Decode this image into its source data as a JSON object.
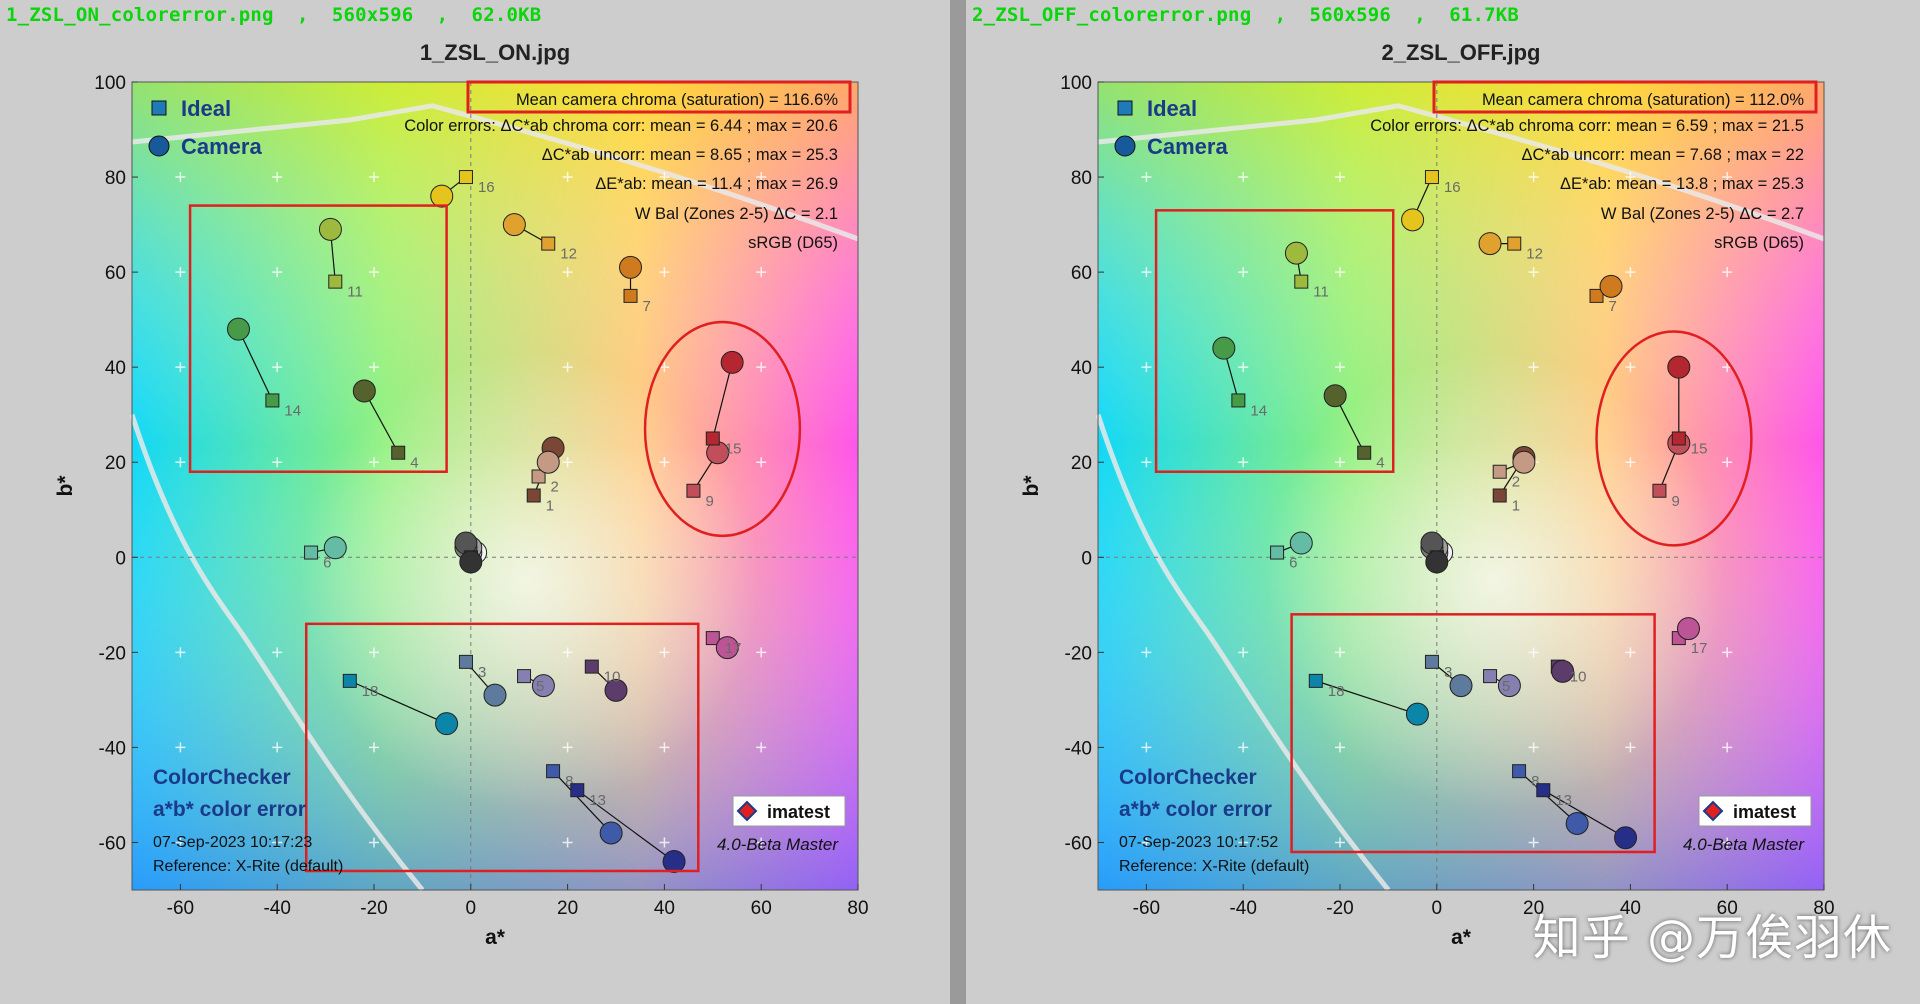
{
  "colors": {
    "highlight": "#e02020",
    "file_label": "#0bd50b",
    "text": "#111111"
  },
  "legend": {
    "ideal": "Ideal",
    "camera": "Camera"
  },
  "footer": {
    "title1": "ColorChecker",
    "title2": "a*b* color error",
    "reference": "Reference: X-Rite (default)",
    "version": "4.0-Beta  Master",
    "logo": "imatest"
  },
  "axes": {
    "xlabel": "a*",
    "ylabel": "b*",
    "xlim": [
      -70,
      80
    ],
    "ylim": [
      -70,
      100
    ],
    "xticks": [
      -60,
      -40,
      -20,
      0,
      20,
      40,
      60,
      80
    ],
    "yticks": [
      -60,
      -40,
      -20,
      0,
      20,
      40,
      60,
      80,
      100
    ]
  },
  "watermark": "知乎 @万俟羽休",
  "panels": [
    {
      "file_label": "1_ZSL_ON_colorerror.png  ,  560x596  ,  62.0KB",
      "title": "1_ZSL_ON.jpg",
      "stats": {
        "mean_chroma": "Mean camera chroma (saturation) = 116.6%",
        "line2": "Color errors: ΔC*ab chroma corr:  mean = 6.44 ;  max = 20.6",
        "line3": "ΔC*ab uncorr:  mean = 8.65 ;  max = 25.3",
        "line4": "ΔE*ab:  mean = 11.4 ;  max = 26.9",
        "line5": "W Bal (Zones 2-5) ΔC = 2.1",
        "line6": "sRGB (D65)"
      },
      "date": "07-Sep-2023 10:17:23"
    },
    {
      "file_label": "2_ZSL_OFF_colorerror.png  ,  560x596  ,  61.7KB",
      "title": "2_ZSL_OFF.jpg",
      "stats": {
        "mean_chroma": "Mean camera chroma (saturation) = 112.0%",
        "line2": "Color errors: ΔC*ab chroma corr:  mean = 6.59 ;  max = 21.5",
        "line3": "ΔC*ab uncorr:  mean = 7.68 ;  max = 22",
        "line4": "ΔE*ab:  mean = 13.8 ;  max = 25.3",
        "line5": "W Bal (Zones 2-5) ΔC = 2.7",
        "line6": "sRGB (D65)"
      },
      "date": "07-Sep-2023 10:17:52"
    }
  ],
  "chart_data": [
    {
      "type": "scatter",
      "title": "1_ZSL_ON.jpg",
      "xlabel": "a*",
      "ylabel": "b*",
      "xlim": [
        -70,
        80
      ],
      "ylim": [
        -70,
        100
      ],
      "points": [
        {
          "id": "1",
          "ideal": [
            13,
            13
          ],
          "camera": [
            17,
            23
          ],
          "color": "#7a4636"
        },
        {
          "id": "2",
          "ideal": [
            14,
            17
          ],
          "camera": [
            16,
            20
          ],
          "color": "#c49a84"
        },
        {
          "id": "3",
          "ideal": [
            -1,
            -22
          ],
          "camera": [
            5,
            -29
          ],
          "color": "#5e7a9c"
        },
        {
          "id": "4",
          "ideal": [
            -15,
            22
          ],
          "camera": [
            -22,
            35
          ],
          "color": "#55622e"
        },
        {
          "id": "5",
          "ideal": [
            11,
            -25
          ],
          "camera": [
            15,
            -27
          ],
          "color": "#8580b0"
        },
        {
          "id": "6",
          "ideal": [
            -33,
            1
          ],
          "camera": [
            -28,
            2
          ],
          "color": "#64bca4"
        },
        {
          "id": "7",
          "ideal": [
            33,
            55
          ],
          "camera": [
            33,
            61
          ],
          "color": "#d07a20"
        },
        {
          "id": "8",
          "ideal": [
            17,
            -45
          ],
          "camera": [
            29,
            -58
          ],
          "color": "#3e5aa8"
        },
        {
          "id": "9",
          "ideal": [
            46,
            14
          ],
          "camera": [
            51,
            22
          ],
          "color": "#c24e5a"
        },
        {
          "id": "10",
          "ideal": [
            25,
            -23
          ],
          "camera": [
            30,
            -28
          ],
          "color": "#5c3c6a"
        },
        {
          "id": "11",
          "ideal": [
            -28,
            58
          ],
          "camera": [
            -29,
            69
          ],
          "color": "#9dba3e"
        },
        {
          "id": "12",
          "ideal": [
            16,
            66
          ],
          "camera": [
            9,
            70
          ],
          "color": "#e0a12e"
        },
        {
          "id": "13",
          "ideal": [
            22,
            -49
          ],
          "camera": [
            42,
            -64
          ],
          "color": "#262e88"
        },
        {
          "id": "14",
          "ideal": [
            -41,
            33
          ],
          "camera": [
            -48,
            48
          ],
          "color": "#469a48"
        },
        {
          "id": "15",
          "ideal": [
            50,
            25
          ],
          "camera": [
            54,
            41
          ],
          "color": "#b42630"
        },
        {
          "id": "16",
          "ideal": [
            -1,
            80
          ],
          "camera": [
            -6,
            76
          ],
          "color": "#e6c41e"
        },
        {
          "id": "17",
          "ideal": [
            50,
            -17
          ],
          "camera": [
            53,
            -19
          ],
          "color": "#bc5496"
        },
        {
          "id": "18",
          "ideal": [
            -25,
            -26
          ],
          "camera": [
            -5,
            -35
          ],
          "color": "#0c86a8"
        },
        {
          "id": "19",
          "ideal": [
            0,
            0
          ],
          "camera": [
            1,
            1
          ],
          "color": "#f4f4f4"
        },
        {
          "id": "20",
          "ideal": [
            0,
            0
          ],
          "camera": [
            0,
            1
          ],
          "color": "#c8c8c8"
        },
        {
          "id": "21",
          "ideal": [
            0,
            0
          ],
          "camera": [
            0,
            2
          ],
          "color": "#a0a0a0"
        },
        {
          "id": "22",
          "ideal": [
            0,
            0
          ],
          "camera": [
            -1,
            2
          ],
          "color": "#7a7a7a"
        },
        {
          "id": "23",
          "ideal": [
            0,
            0
          ],
          "camera": [
            -1,
            3
          ],
          "color": "#555555"
        },
        {
          "id": "24",
          "ideal": [
            0,
            0
          ],
          "camera": [
            0,
            -1
          ],
          "color": "#333333"
        }
      ],
      "highlight_boxes": [
        {
          "a": [
            -58,
            -5
          ],
          "b": [
            18,
            74
          ]
        },
        {
          "a": [
            -34,
            47
          ],
          "b": [
            -66,
            -14
          ]
        }
      ],
      "highlight_ellipses": [
        {
          "cx": 52,
          "cy": 27,
          "ra": 16,
          "rb": 22.5
        }
      ]
    },
    {
      "type": "scatter",
      "title": "2_ZSL_OFF.jpg",
      "xlabel": "a*",
      "ylabel": "b*",
      "xlim": [
        -70,
        80
      ],
      "ylim": [
        -70,
        100
      ],
      "points": [
        {
          "id": "1",
          "ideal": [
            13,
            13
          ],
          "camera": [
            18,
            21
          ],
          "color": "#7a4636"
        },
        {
          "id": "2",
          "ideal": [
            13,
            18
          ],
          "camera": [
            18,
            20
          ],
          "color": "#c49a84"
        },
        {
          "id": "3",
          "ideal": [
            -1,
            -22
          ],
          "camera": [
            5,
            -27
          ],
          "color": "#5e7a9c"
        },
        {
          "id": "4",
          "ideal": [
            -15,
            22
          ],
          "camera": [
            -21,
            34
          ],
          "color": "#55622e"
        },
        {
          "id": "5",
          "ideal": [
            11,
            -25
          ],
          "camera": [
            15,
            -27
          ],
          "color": "#8580b0"
        },
        {
          "id": "6",
          "ideal": [
            -33,
            1
          ],
          "camera": [
            -28,
            3
          ],
          "color": "#64bca4"
        },
        {
          "id": "7",
          "ideal": [
            33,
            55
          ],
          "camera": [
            36,
            57
          ],
          "color": "#d07a20"
        },
        {
          "id": "8",
          "ideal": [
            17,
            -45
          ],
          "camera": [
            29,
            -56
          ],
          "color": "#3e5aa8"
        },
        {
          "id": "9",
          "ideal": [
            46,
            14
          ],
          "camera": [
            50,
            24
          ],
          "color": "#c24e5a"
        },
        {
          "id": "10",
          "ideal": [
            25,
            -23
          ],
          "camera": [
            26,
            -24
          ],
          "color": "#5c3c6a"
        },
        {
          "id": "11",
          "ideal": [
            -28,
            58
          ],
          "camera": [
            -29,
            64
          ],
          "color": "#9dba3e"
        },
        {
          "id": "12",
          "ideal": [
            16,
            66
          ],
          "camera": [
            11,
            66
          ],
          "color": "#e0a12e"
        },
        {
          "id": "13",
          "ideal": [
            22,
            -49
          ],
          "camera": [
            39,
            -59
          ],
          "color": "#262e88"
        },
        {
          "id": "14",
          "ideal": [
            -41,
            33
          ],
          "camera": [
            -44,
            44
          ],
          "color": "#469a48"
        },
        {
          "id": "15",
          "ideal": [
            50,
            25
          ],
          "camera": [
            50,
            40
          ],
          "color": "#b42630"
        },
        {
          "id": "16",
          "ideal": [
            -1,
            80
          ],
          "camera": [
            -5,
            71
          ],
          "color": "#e6c41e"
        },
        {
          "id": "17",
          "ideal": [
            50,
            -17
          ],
          "camera": [
            52,
            -15
          ],
          "color": "#bc5496"
        },
        {
          "id": "18",
          "ideal": [
            -25,
            -26
          ],
          "camera": [
            -4,
            -33
          ],
          "color": "#0c86a8"
        },
        {
          "id": "19",
          "ideal": [
            0,
            0
          ],
          "camera": [
            1,
            1
          ],
          "color": "#f4f4f4"
        },
        {
          "id": "20",
          "ideal": [
            0,
            0
          ],
          "camera": [
            0,
            1
          ],
          "color": "#c8c8c8"
        },
        {
          "id": "21",
          "ideal": [
            0,
            0
          ],
          "camera": [
            0,
            2
          ],
          "color": "#a0a0a0"
        },
        {
          "id": "22",
          "ideal": [
            0,
            0
          ],
          "camera": [
            -1,
            2
          ],
          "color": "#7a7a7a"
        },
        {
          "id": "23",
          "ideal": [
            0,
            0
          ],
          "camera": [
            -1,
            3
          ],
          "color": "#555555"
        },
        {
          "id": "24",
          "ideal": [
            0,
            0
          ],
          "camera": [
            0,
            -1
          ],
          "color": "#333333"
        }
      ],
      "highlight_boxes": [
        {
          "a": [
            -58,
            -9
          ],
          "b": [
            18,
            73
          ]
        },
        {
          "a": [
            -30,
            45
          ],
          "b": [
            -62,
            -12
          ]
        }
      ],
      "highlight_ellipses": [
        {
          "cx": 49,
          "cy": 25,
          "ra": 16,
          "rb": 22.5
        }
      ]
    }
  ]
}
